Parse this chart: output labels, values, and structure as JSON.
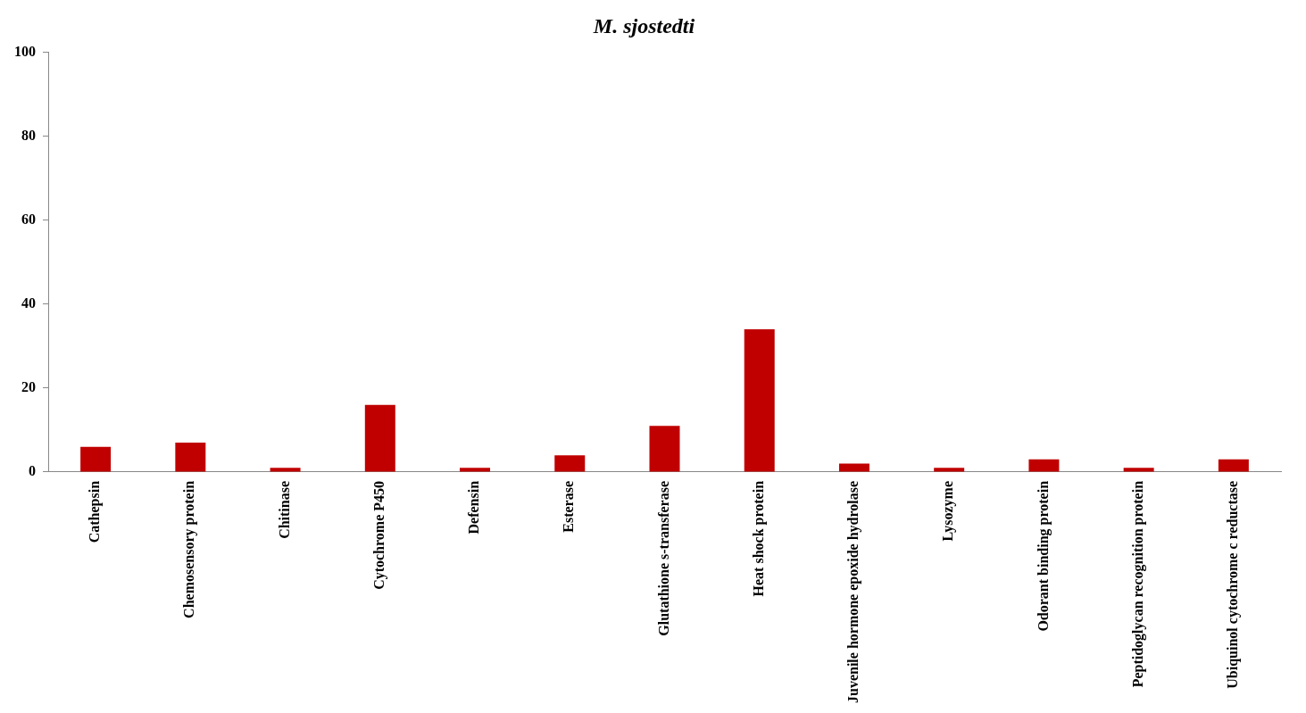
{
  "chart_data": {
    "type": "bar",
    "title": "M. sjostedti",
    "categories": [
      "Cathepsin",
      "Chemosensory protein",
      "Chitinase",
      "Cytochrome P450",
      "Defensin",
      "Esterase",
      "Glutathione s-transferase",
      "Heat shock protein",
      "Juvenile hormone epoxide hydrolase",
      "Lysozyme",
      "Odorant binding protein",
      "Peptidoglycan recognition protein",
      "Ubiquinol cytochrome c reductase"
    ],
    "values": [
      6,
      7,
      1,
      16,
      1,
      4,
      11,
      34,
      2,
      1,
      3,
      1,
      3
    ],
    "color": "#c00000",
    "ylim": [
      0,
      100
    ],
    "yticks": [
      0,
      20,
      40,
      60,
      80,
      100
    ],
    "grid": false,
    "legend": false
  }
}
